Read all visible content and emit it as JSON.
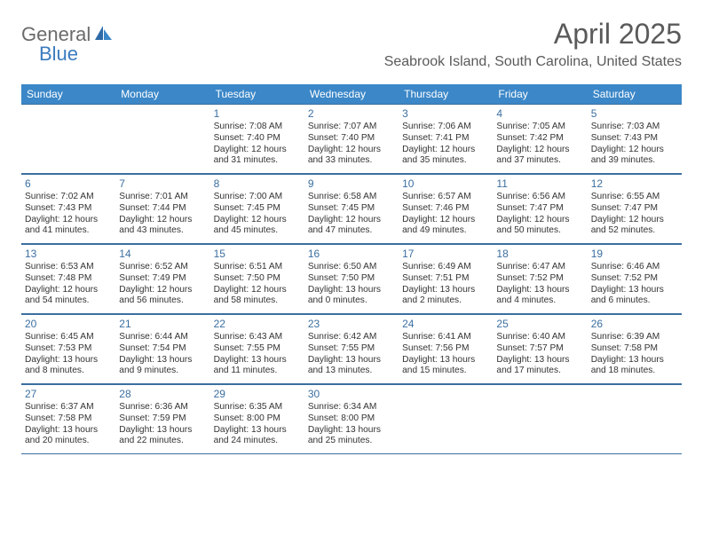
{
  "logo": {
    "text1": "General",
    "text2": "Blue"
  },
  "title": "April 2025",
  "location": "Seabrook Island, South Carolina, United States",
  "colors": {
    "header_bg": "#3b87c8",
    "header_text": "#ffffff",
    "daynum_color": "#3b6fa0",
    "border_color": "#3b6fa0",
    "logo_gray": "#6b6b6b",
    "logo_blue": "#3b7bbf",
    "title_color": "#5a5a5a"
  },
  "dow": [
    "Sunday",
    "Monday",
    "Tuesday",
    "Wednesday",
    "Thursday",
    "Friday",
    "Saturday"
  ],
  "weeks": [
    [
      null,
      null,
      {
        "n": "1",
        "sr": "7:08 AM",
        "ss": "7:40 PM",
        "d1": "12 hours",
        "d2": "and 31 minutes."
      },
      {
        "n": "2",
        "sr": "7:07 AM",
        "ss": "7:40 PM",
        "d1": "12 hours",
        "d2": "and 33 minutes."
      },
      {
        "n": "3",
        "sr": "7:06 AM",
        "ss": "7:41 PM",
        "d1": "12 hours",
        "d2": "and 35 minutes."
      },
      {
        "n": "4",
        "sr": "7:05 AM",
        "ss": "7:42 PM",
        "d1": "12 hours",
        "d2": "and 37 minutes."
      },
      {
        "n": "5",
        "sr": "7:03 AM",
        "ss": "7:43 PM",
        "d1": "12 hours",
        "d2": "and 39 minutes."
      }
    ],
    [
      {
        "n": "6",
        "sr": "7:02 AM",
        "ss": "7:43 PM",
        "d1": "12 hours",
        "d2": "and 41 minutes."
      },
      {
        "n": "7",
        "sr": "7:01 AM",
        "ss": "7:44 PM",
        "d1": "12 hours",
        "d2": "and 43 minutes."
      },
      {
        "n": "8",
        "sr": "7:00 AM",
        "ss": "7:45 PM",
        "d1": "12 hours",
        "d2": "and 45 minutes."
      },
      {
        "n": "9",
        "sr": "6:58 AM",
        "ss": "7:45 PM",
        "d1": "12 hours",
        "d2": "and 47 minutes."
      },
      {
        "n": "10",
        "sr": "6:57 AM",
        "ss": "7:46 PM",
        "d1": "12 hours",
        "d2": "and 49 minutes."
      },
      {
        "n": "11",
        "sr": "6:56 AM",
        "ss": "7:47 PM",
        "d1": "12 hours",
        "d2": "and 50 minutes."
      },
      {
        "n": "12",
        "sr": "6:55 AM",
        "ss": "7:47 PM",
        "d1": "12 hours",
        "d2": "and 52 minutes."
      }
    ],
    [
      {
        "n": "13",
        "sr": "6:53 AM",
        "ss": "7:48 PM",
        "d1": "12 hours",
        "d2": "and 54 minutes."
      },
      {
        "n": "14",
        "sr": "6:52 AM",
        "ss": "7:49 PM",
        "d1": "12 hours",
        "d2": "and 56 minutes."
      },
      {
        "n": "15",
        "sr": "6:51 AM",
        "ss": "7:50 PM",
        "d1": "12 hours",
        "d2": "and 58 minutes."
      },
      {
        "n": "16",
        "sr": "6:50 AM",
        "ss": "7:50 PM",
        "d1": "13 hours",
        "d2": "and 0 minutes."
      },
      {
        "n": "17",
        "sr": "6:49 AM",
        "ss": "7:51 PM",
        "d1": "13 hours",
        "d2": "and 2 minutes."
      },
      {
        "n": "18",
        "sr": "6:47 AM",
        "ss": "7:52 PM",
        "d1": "13 hours",
        "d2": "and 4 minutes."
      },
      {
        "n": "19",
        "sr": "6:46 AM",
        "ss": "7:52 PM",
        "d1": "13 hours",
        "d2": "and 6 minutes."
      }
    ],
    [
      {
        "n": "20",
        "sr": "6:45 AM",
        "ss": "7:53 PM",
        "d1": "13 hours",
        "d2": "and 8 minutes."
      },
      {
        "n": "21",
        "sr": "6:44 AM",
        "ss": "7:54 PM",
        "d1": "13 hours",
        "d2": "and 9 minutes."
      },
      {
        "n": "22",
        "sr": "6:43 AM",
        "ss": "7:55 PM",
        "d1": "13 hours",
        "d2": "and 11 minutes."
      },
      {
        "n": "23",
        "sr": "6:42 AM",
        "ss": "7:55 PM",
        "d1": "13 hours",
        "d2": "and 13 minutes."
      },
      {
        "n": "24",
        "sr": "6:41 AM",
        "ss": "7:56 PM",
        "d1": "13 hours",
        "d2": "and 15 minutes."
      },
      {
        "n": "25",
        "sr": "6:40 AM",
        "ss": "7:57 PM",
        "d1": "13 hours",
        "d2": "and 17 minutes."
      },
      {
        "n": "26",
        "sr": "6:39 AM",
        "ss": "7:58 PM",
        "d1": "13 hours",
        "d2": "and 18 minutes."
      }
    ],
    [
      {
        "n": "27",
        "sr": "6:37 AM",
        "ss": "7:58 PM",
        "d1": "13 hours",
        "d2": "and 20 minutes."
      },
      {
        "n": "28",
        "sr": "6:36 AM",
        "ss": "7:59 PM",
        "d1": "13 hours",
        "d2": "and 22 minutes."
      },
      {
        "n": "29",
        "sr": "6:35 AM",
        "ss": "8:00 PM",
        "d1": "13 hours",
        "d2": "and 24 minutes."
      },
      {
        "n": "30",
        "sr": "6:34 AM",
        "ss": "8:00 PM",
        "d1": "13 hours",
        "d2": "and 25 minutes."
      },
      null,
      null,
      null
    ]
  ],
  "labels": {
    "sunrise": "Sunrise:",
    "sunset": "Sunset:",
    "daylight": "Daylight:"
  }
}
